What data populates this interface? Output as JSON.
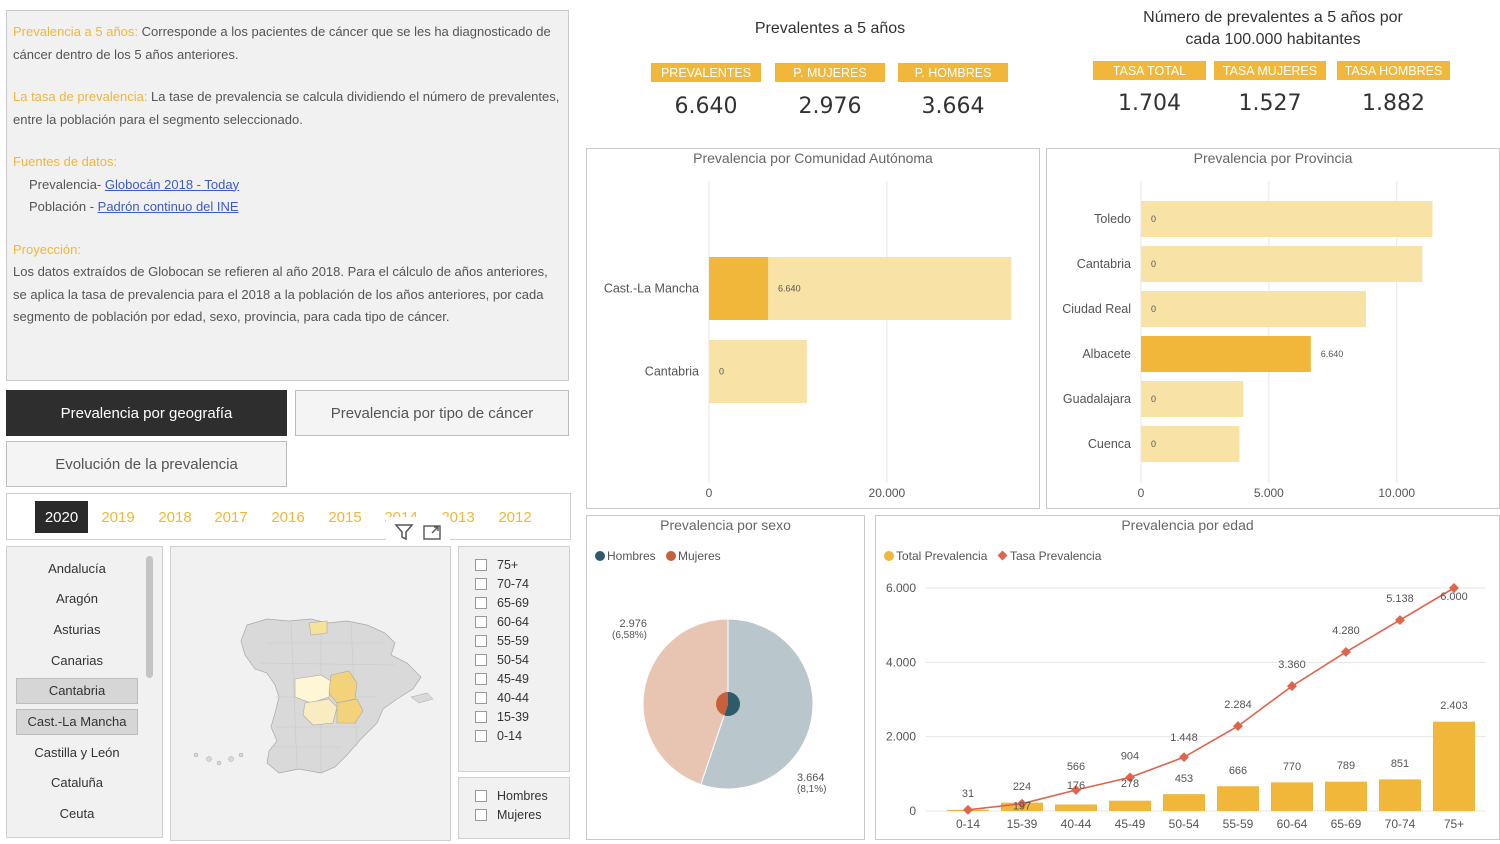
{
  "info": {
    "prev_title": "Prevalencia a 5 años:",
    "prev_text": " Corresponde a los pacientes de cáncer que se les ha diagnosticado de cáncer dentro de los 5 años anteriores.",
    "tasa_title": "La tasa de prevalencia:",
    "tasa_text": " La tase de prevalencia se calcula dividiendo el número de prevalentes, entre la población para el segmento seleccionado.",
    "fuentes_title": "Fuentes de datos:",
    "fuente1_prefix": "Prevalencia- ",
    "fuente1_link": "Globocán 2018 - Today",
    "fuente2_prefix": "Población - ",
    "fuente2_link": "Padrón continuo del INE",
    "proy_title": "Proyección:",
    "proy_text": "Los datos extraídos de Globocan se refieren al año 2018. Para el cálculo de años anteriores, se aplica la tasa de prevalencia para el 2018 a la población de los años anteriores, por cada segmento de población por edad, sexo, provincia, para cada tipo de cáncer."
  },
  "nav": {
    "geo": "Prevalencia por geografía",
    "tipo": "Prevalencia por tipo de cáncer",
    "evol": "Evolución de la prevalencia"
  },
  "years": [
    "2020",
    "2019",
    "2018",
    "2017",
    "2016",
    "2015",
    "2014",
    "2013",
    "2012"
  ],
  "selected_year": "2020",
  "regions": [
    "Andalucía",
    "Aragón",
    "Asturias",
    "Canarias",
    "Cantabria",
    "Cast.-La Mancha",
    "Castilla y León",
    "Cataluña",
    "Ceuta"
  ],
  "selected_regions": [
    "Cantabria",
    "Cast.-La Mancha"
  ],
  "age_filter": [
    "75+",
    "70-74",
    "65-69",
    "60-64",
    "55-59",
    "50-54",
    "45-49",
    "40-44",
    "15-39",
    "0-14"
  ],
  "sex_filter": [
    "Hombres",
    "Mujeres"
  ],
  "kpi1": {
    "title": "Prevalentes a 5 años",
    "labels": [
      "PREVALENTES",
      "P. MUJERES",
      "P. HOMBRES"
    ],
    "values": [
      "6.640",
      "2.976",
      "3.664"
    ]
  },
  "kpi2": {
    "title_line1": "Número de prevalentes a 5 años por",
    "title_line2": "cada 100.000 habitantes",
    "labels": [
      "TASA TOTAL",
      "TASA MUJERES",
      "TASA HOMBRES"
    ],
    "values": [
      "1.704",
      "1.527",
      "1.882"
    ]
  },
  "colors": {
    "accent": "#f0b73a",
    "accent_light": "#f9e2a6",
    "hombres": "#2e5b6b",
    "mujeres": "#c8603a",
    "line": "#e0634a"
  },
  "chart_data": [
    {
      "type": "bar",
      "title": "Prevalencia por Comunidad Autónoma",
      "orientation": "horizontal",
      "categories": [
        "Cast.-La Mancha",
        "Cantabria"
      ],
      "values": [
        6640,
        0
      ],
      "value_labels": [
        "6.640",
        "0"
      ],
      "background_values": [
        34000,
        11000
      ],
      "ticks": [
        "0",
        "20.000"
      ],
      "xlim": [
        0,
        38000
      ]
    },
    {
      "type": "bar",
      "title": "Prevalencia por Provincia",
      "orientation": "horizontal",
      "categories": [
        "Toledo",
        "Cantabria",
        "Ciudad Real",
        "Albacete",
        "Guadalajara",
        "Cuenca"
      ],
      "values": [
        0,
        0,
        0,
        6640,
        0,
        0
      ],
      "value_labels": [
        "0",
        "0",
        "0",
        "6.640",
        "0",
        "0"
      ],
      "background_values": [
        11400,
        11000,
        8800,
        6640,
        4000,
        3850
      ],
      "ticks": [
        "0",
        "5.000",
        "10.000"
      ],
      "xlim": [
        0,
        14000
      ]
    },
    {
      "type": "pie",
      "title": "Prevalencia por sexo",
      "legend": [
        "Hombres",
        "Mujeres"
      ],
      "values": [
        3664,
        2976
      ],
      "labels": [
        "3.664",
        "2.976"
      ],
      "percent_labels": [
        "(8,1%)",
        "(6,58%)"
      ]
    },
    {
      "type": "bar",
      "title": "Prevalencia por edad",
      "legend": [
        "Total Prevalencia",
        "Tasa Prevalencia"
      ],
      "categories": [
        "0-14",
        "15-39",
        "40-44",
        "45-49",
        "50-54",
        "55-59",
        "60-64",
        "65-69",
        "70-74",
        "75+"
      ],
      "series": [
        {
          "name": "Total Prevalencia",
          "values": [
            31,
            224,
            176,
            278,
            453,
            666,
            770,
            789,
            851,
            2403
          ],
          "labels": [
            "31",
            "224",
            "176",
            "278",
            "453",
            "666",
            "770",
            "789",
            "851",
            "2.403"
          ]
        },
        {
          "name": "Tasa Prevalencia",
          "values": [
            31,
            197,
            566,
            904,
            1448,
            2284,
            3360,
            4280,
            5138,
            6000
          ],
          "labels": [
            "",
            "197",
            "566",
            "904",
            "1.448",
            "2.284",
            "3.360",
            "4.280",
            "5.138",
            "6.000"
          ]
        }
      ],
      "ticks": [
        "0",
        "2.000",
        "4.000",
        "6.000"
      ],
      "ylim": [
        0,
        6000
      ]
    }
  ]
}
